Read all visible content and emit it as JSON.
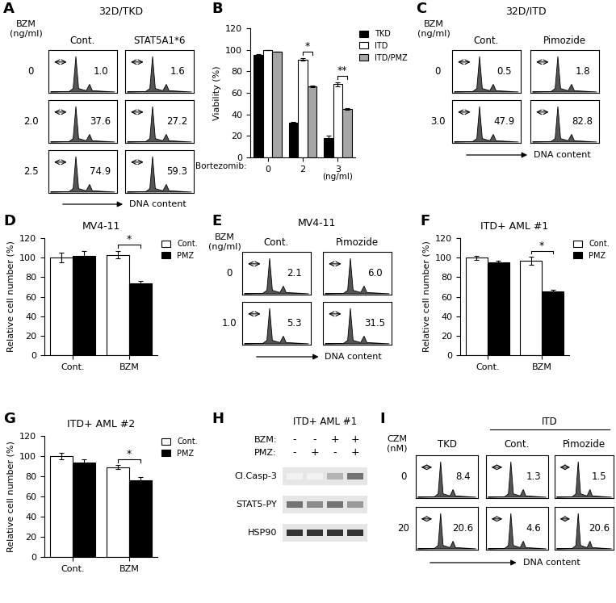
{
  "chart_data": [
    {
      "label": "A",
      "type": "flow",
      "title": "32D/TKD",
      "row_header": "BZM\n(ng/ml)",
      "columns": [
        "Cont.",
        "STAT5A1*6"
      ],
      "rows": [
        "0",
        "2.0",
        "2.5"
      ],
      "values": [
        [
          1.0,
          1.6
        ],
        [
          37.6,
          27.2
        ],
        [
          74.9,
          59.3
        ]
      ],
      "xlabel": "DNA content"
    },
    {
      "label": "B",
      "type": "bar",
      "ylabel": "Viability (%)",
      "xlabel": "Bortezomib:",
      "x_unit": "(ng/ml)",
      "categories": [
        "0",
        "2",
        "3"
      ],
      "series": [
        {
          "name": "TKD",
          "color": "#000000",
          "values": [
            95,
            32,
            18
          ],
          "errors": [
            1,
            1,
            2
          ]
        },
        {
          "name": "ITD",
          "color": "#ffffff",
          "values": [
            100,
            91,
            68
          ],
          "errors": [
            0,
            1,
            2
          ]
        },
        {
          "name": "ITD/PMZ",
          "color": "#a6a6a6",
          "values": [
            98,
            66,
            45
          ],
          "errors": [
            0,
            1,
            1
          ]
        }
      ],
      "significance": [
        {
          "category": "2",
          "series": [
            "ITD",
            "ITD/PMZ"
          ],
          "label": "*"
        },
        {
          "category": "3",
          "series": [
            "ITD",
            "ITD/PMZ"
          ],
          "label": "**"
        }
      ],
      "ylim": [
        0,
        120
      ],
      "yticks": [
        0,
        20,
        40,
        60,
        80,
        100,
        120
      ],
      "legend": "upper right"
    },
    {
      "label": "C",
      "type": "flow",
      "title": "32D/ITD",
      "row_header": "BZM\n(ng/ml)",
      "columns": [
        "Cont.",
        "Pimozide"
      ],
      "rows": [
        "0",
        "3.0"
      ],
      "values": [
        [
          0.5,
          1.8
        ],
        [
          47.9,
          82.8
        ]
      ],
      "xlabel": "DNA content"
    },
    {
      "label": "D",
      "type": "bar",
      "title": "MV4-11",
      "ylabel": "Relative cell number (%)",
      "categories": [
        "Cont.",
        "BZM"
      ],
      "series": [
        {
          "name": "Cont.",
          "color": "#ffffff",
          "values": [
            100,
            103
          ],
          "errors": [
            5,
            4
          ]
        },
        {
          "name": "PMZ",
          "color": "#000000",
          "values": [
            102,
            74
          ],
          "errors": [
            5,
            2
          ]
        }
      ],
      "significance": [
        {
          "category": "BZM",
          "series": [
            "Cont.",
            "PMZ"
          ],
          "label": "*"
        }
      ],
      "ylim": [
        0,
        120
      ],
      "yticks": [
        0,
        20,
        40,
        60,
        80,
        100,
        120
      ],
      "legend": "upper right"
    },
    {
      "label": "E",
      "type": "flow",
      "title": "MV4-11",
      "row_header": "BZM\n(ng/ml)",
      "columns": [
        "Cont.",
        "Pimozide"
      ],
      "rows": [
        "0",
        "1.0"
      ],
      "values": [
        [
          2.1,
          6.0
        ],
        [
          5.3,
          31.5
        ]
      ],
      "xlabel": "DNA content"
    },
    {
      "label": "F",
      "type": "bar",
      "title": "ITD+ AML #1",
      "ylabel": "Relative cell number (%)",
      "categories": [
        "Cont.",
        "BZM"
      ],
      "series": [
        {
          "name": "Cont.",
          "color": "#ffffff",
          "values": [
            100,
            97
          ],
          "errors": [
            2,
            4
          ]
        },
        {
          "name": "PMZ",
          "color": "#000000",
          "values": [
            95,
            65
          ],
          "errors": [
            2,
            2
          ]
        }
      ],
      "significance": [
        {
          "category": "BZM",
          "series": [
            "Cont.",
            "PMZ"
          ],
          "label": "*"
        }
      ],
      "ylim": [
        0,
        120
      ],
      "yticks": [
        0,
        20,
        40,
        60,
        80,
        100,
        120
      ],
      "legend": "upper right"
    },
    {
      "label": "G",
      "type": "bar",
      "title": "ITD+ AML #2",
      "ylabel": "Relative cell number (%)",
      "categories": [
        "Cont.",
        "BZM"
      ],
      "series": [
        {
          "name": "Cont.",
          "color": "#ffffff",
          "values": [
            100,
            89
          ],
          "errors": [
            3,
            2
          ]
        },
        {
          "name": "PMZ",
          "color": "#000000",
          "values": [
            94,
            76
          ],
          "errors": [
            3,
            3
          ]
        }
      ],
      "significance": [
        {
          "category": "BZM",
          "series": [
            "Cont.",
            "PMZ"
          ],
          "label": "*"
        }
      ],
      "ylim": [
        0,
        120
      ],
      "yticks": [
        0,
        20,
        40,
        60,
        80,
        100,
        120
      ],
      "legend": "upper right"
    },
    {
      "label": "H",
      "type": "blot",
      "title": "ITD+ AML #1",
      "conditions": [
        {
          "name": "BZM:",
          "values": [
            "-",
            "-",
            "+",
            "+"
          ]
        },
        {
          "name": "PMZ:",
          "values": [
            "-",
            "+",
            "-",
            "+"
          ]
        }
      ],
      "bands": [
        {
          "name": "Cl.Casp-3",
          "intensity": [
            0.05,
            0.05,
            0.3,
            0.55
          ]
        },
        {
          "name": "STAT5-PY",
          "intensity": [
            0.55,
            0.45,
            0.55,
            0.4
          ]
        },
        {
          "name": "HSP90",
          "intensity": [
            0.8,
            0.8,
            0.8,
            0.8
          ]
        }
      ]
    },
    {
      "label": "I",
      "type": "flow",
      "row_header": "CZM\n(nM)",
      "group": {
        "label": "ITD",
        "columns": [
          "Cont.",
          "Pimozide"
        ]
      },
      "columns": [
        "TKD",
        "Cont.",
        "Pimozide"
      ],
      "rows": [
        "0",
        "20"
      ],
      "values": [
        [
          8.4,
          1.3,
          1.5
        ],
        [
          20.6,
          4.6,
          20.6
        ]
      ],
      "xlabel": "DNA content"
    }
  ]
}
